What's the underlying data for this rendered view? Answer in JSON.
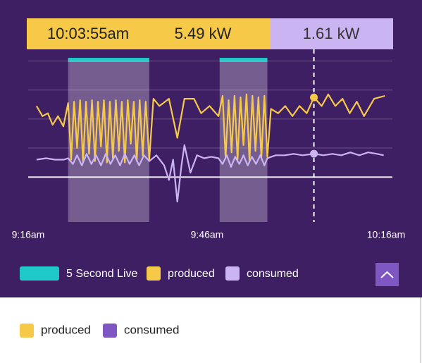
{
  "chart_data": {
    "type": "line",
    "tooltip": {
      "time": "10:03:55am",
      "produced": "5.49 kW",
      "consumed": "1.61 kW"
    },
    "xlim": [
      556,
      616
    ],
    "xticks": [
      {
        "value": 556,
        "label": "9:16am"
      },
      {
        "value": 586,
        "label": "9:46am"
      },
      {
        "value": 616,
        "label": "10:16am"
      }
    ],
    "ylim": [
      -3.1,
      9
    ],
    "yticks": [
      0,
      2,
      4,
      6,
      8
    ],
    "grid": true,
    "cursor_x": 603.9,
    "highlight": {
      "name": "5 Second Live",
      "color": "#1fc9c9",
      "ranges": [
        [
          562.7,
          576.3
        ],
        [
          588.1,
          596.1
        ]
      ]
    },
    "series": [
      {
        "name": "produced",
        "color": "#f7c948",
        "x": [
          557.4,
          558.4,
          559.3,
          560.1,
          561.0,
          561.9,
          562.7,
          563.2,
          563.7,
          564.2,
          564.7,
          565.2,
          565.7,
          566.2,
          566.7,
          567.2,
          567.7,
          568.2,
          568.7,
          569.2,
          569.7,
          570.2,
          570.7,
          571.2,
          571.7,
          572.2,
          572.7,
          573.2,
          573.7,
          574.2,
          574.7,
          575.2,
          575.7,
          576.3,
          577.0,
          578.0,
          579.6,
          581.0,
          582.2,
          583.8,
          585.0,
          586.4,
          587.9,
          588.6,
          589.1,
          589.6,
          590.1,
          590.6,
          591.1,
          591.6,
          592.1,
          592.6,
          593.1,
          593.6,
          594.1,
          594.6,
          595.1,
          595.6,
          596.1,
          596.7,
          597.9,
          599.1,
          600.3,
          601.5,
          602.7,
          603.9,
          605.2,
          606.3,
          607.5,
          608.7,
          609.9,
          611.1,
          612.3,
          614.0,
          615.8
        ],
        "values": [
          4.9,
          4.2,
          4.4,
          3.6,
          4.2,
          3.5,
          5.1,
          1.2,
          5.2,
          2.0,
          5.3,
          1.0,
          5.2,
          1.6,
          5.3,
          1.1,
          5.2,
          2.1,
          5.3,
          1.0,
          5.2,
          1.3,
          5.3,
          1.8,
          5.2,
          1.0,
          5.3,
          2.3,
          5.2,
          1.1,
          5.3,
          1.5,
          5.2,
          1.2,
          5.4,
          4.9,
          5.4,
          2.7,
          5.4,
          5.4,
          4.4,
          4.9,
          4.2,
          5.6,
          1.3,
          5.3,
          1.7,
          5.6,
          1.2,
          5.5,
          2.2,
          5.7,
          1.1,
          5.6,
          1.8,
          5.5,
          1.3,
          5.6,
          1.4,
          4.7,
          4.4,
          4.9,
          4.2,
          4.9,
          4.4,
          5.49,
          4.9,
          5.7,
          4.9,
          5.4,
          4.4,
          5.2,
          4.2,
          5.4,
          5.6
        ]
      },
      {
        "name": "consumed",
        "color": "#cbb4f2",
        "x": [
          557.4,
          559.0,
          560.5,
          562.0,
          562.7,
          563.5,
          564.2,
          565.0,
          565.8,
          566.6,
          567.4,
          568.2,
          569.0,
          569.8,
          570.6,
          571.4,
          572.2,
          573.0,
          573.8,
          574.6,
          575.4,
          576.3,
          577.5,
          578.8,
          579.6,
          580.3,
          581.0,
          581.7,
          582.2,
          583.2,
          584.3,
          585.5,
          586.7,
          587.9,
          588.6,
          589.3,
          590.0,
          590.7,
          591.4,
          592.1,
          592.8,
          593.5,
          594.2,
          594.9,
          595.6,
          596.1,
          597.5,
          599.0,
          600.5,
          602.0,
          603.9,
          605.5,
          607.0,
          608.5,
          610.0,
          611.5,
          613.0,
          614.5,
          615.6
        ],
        "values": [
          1.2,
          1.3,
          1.2,
          1.2,
          1.3,
          0.9,
          1.5,
          0.8,
          1.6,
          0.9,
          1.5,
          0.8,
          1.6,
          0.9,
          1.5,
          0.8,
          1.6,
          0.9,
          1.5,
          0.8,
          1.5,
          1.1,
          1.5,
          0.8,
          -0.2,
          1.2,
          -1.7,
          0.8,
          2.2,
          0.3,
          1.5,
          1.3,
          1.4,
          1.3,
          0.9,
          1.5,
          0.7,
          1.4,
          0.9,
          1.5,
          0.8,
          1.4,
          0.9,
          1.5,
          0.8,
          1.3,
          1.5,
          1.5,
          1.6,
          1.5,
          1.61,
          1.5,
          1.6,
          1.5,
          1.7,
          1.5,
          1.7,
          1.6,
          1.5
        ]
      }
    ]
  },
  "footer_legend": [
    {
      "name": "produced",
      "color": "#f7c948"
    },
    {
      "name": "consumed",
      "color": "#7e57c2"
    }
  ]
}
